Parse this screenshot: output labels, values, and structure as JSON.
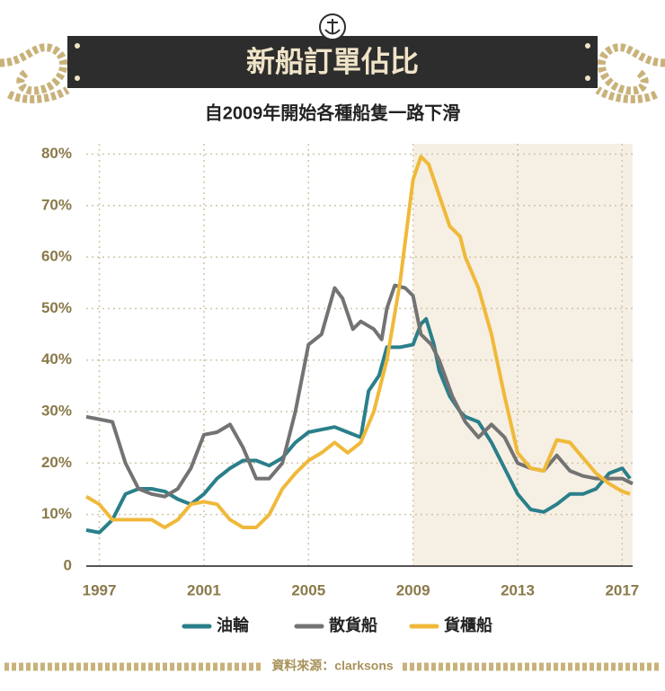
{
  "chart_data": {
    "type": "line",
    "title": "新船訂單佔比",
    "subtitle": "自2009年開始各種船隻一路下滑",
    "source": "資料來源：clarksons",
    "xlim": [
      1996.5,
      2017.4
    ],
    "xticks": [
      1997,
      2001,
      2005,
      2009,
      2013,
      2017
    ],
    "ylim": [
      0,
      82
    ],
    "yticks": [
      0,
      {
        "value": 10,
        "label": "10%"
      },
      {
        "value": 20,
        "label": "20%"
      },
      {
        "value": 30,
        "label": "30%"
      },
      {
        "value": 40,
        "label": "40%"
      },
      {
        "value": 50,
        "label": "50%"
      },
      {
        "value": 60,
        "label": "60%"
      },
      {
        "value": 70,
        "label": "70%"
      },
      {
        "value": 80,
        "label": "80%"
      }
    ],
    "grid": true,
    "shaded_range": [
      2009,
      2017.4
    ],
    "series": [
      {
        "name": "油輪",
        "color": "#2a7f8a",
        "x": [
          1996.5,
          1997,
          1997.5,
          1998,
          1998.5,
          1999,
          1999.5,
          2000,
          2000.5,
          2001,
          2001.5,
          2002,
          2002.5,
          2003,
          2003.5,
          2004,
          2004.5,
          2005,
          2005.5,
          2006,
          2006.5,
          2007,
          2007.3,
          2007.7,
          2008,
          2008.5,
          2009,
          2009.3,
          2009.5,
          2009.8,
          2010,
          2010.4,
          2010.8,
          2011,
          2011.5,
          2012,
          2012.5,
          2013,
          2013.5,
          2014,
          2014.5,
          2015,
          2015.5,
          2016,
          2016.5,
          2017,
          2017.3
        ],
        "values": [
          7,
          6.5,
          9,
          14,
          15,
          15,
          14.5,
          13,
          12,
          14,
          17,
          19,
          20.5,
          20.5,
          19.5,
          21,
          24,
          26,
          26.5,
          27,
          26,
          25,
          34,
          37,
          42.5,
          42.5,
          43,
          47,
          48,
          43,
          38,
          33,
          30,
          29,
          28,
          24,
          19,
          14,
          11,
          10.5,
          12,
          14,
          14,
          15,
          18,
          19,
          17
        ]
      },
      {
        "name": "散貨船",
        "color": "#737373",
        "x": [
          1996.5,
          1997,
          1997.5,
          1998,
          1998.5,
          1999,
          1999.5,
          2000,
          2000.5,
          2001,
          2001.5,
          2002,
          2002.5,
          2003,
          2003.5,
          2004,
          2004.5,
          2005,
          2005.5,
          2006,
          2006.3,
          2006.7,
          2007,
          2007.5,
          2007.8,
          2008,
          2008.3,
          2008.7,
          2009,
          2009.3,
          2009.7,
          2010,
          2010.5,
          2011,
          2011.5,
          2012,
          2012.5,
          2013,
          2013.5,
          2014,
          2014.5,
          2015,
          2015.5,
          2016,
          2016.5,
          2017,
          2017.4
        ],
        "values": [
          29,
          28.5,
          28,
          20,
          15,
          14,
          13.5,
          15,
          19,
          25.5,
          26,
          27.5,
          23,
          17,
          17,
          20,
          30,
          43,
          45,
          54,
          52,
          46,
          47.5,
          46,
          44,
          50,
          54.5,
          54,
          52.5,
          45,
          43,
          40,
          33,
          28,
          25,
          27.5,
          25,
          20,
          19,
          18.5,
          21.5,
          18.5,
          17.5,
          17,
          17,
          17,
          16
        ]
      },
      {
        "name": "貨櫃船",
        "color": "#f0b93a",
        "x": [
          1996.5,
          1997,
          1997.5,
          1998,
          1998.5,
          1999,
          1999.5,
          2000,
          2000.5,
          2001,
          2001.5,
          2002,
          2002.5,
          2003,
          2003.5,
          2004,
          2004.5,
          2005,
          2005.5,
          2006,
          2006.5,
          2007,
          2007.5,
          2008,
          2008.5,
          2009,
          2009.3,
          2009.6,
          2010,
          2010.4,
          2010.8,
          2011,
          2011.5,
          2012,
          2012.5,
          2013,
          2013.5,
          2014,
          2014.5,
          2015,
          2015.5,
          2016,
          2016.5,
          2017,
          2017.3
        ],
        "values": [
          13.5,
          12,
          9,
          9,
          9,
          9,
          7.5,
          9,
          12,
          12.5,
          12,
          9,
          7.5,
          7.5,
          10,
          15,
          18,
          20.5,
          22,
          24,
          22,
          24,
          30,
          40,
          55,
          75,
          79.5,
          78,
          72,
          66,
          64,
          60,
          54,
          45,
          33,
          22,
          19,
          18.5,
          24.5,
          24,
          21,
          18,
          16,
          14.5,
          14
        ]
      }
    ]
  }
}
